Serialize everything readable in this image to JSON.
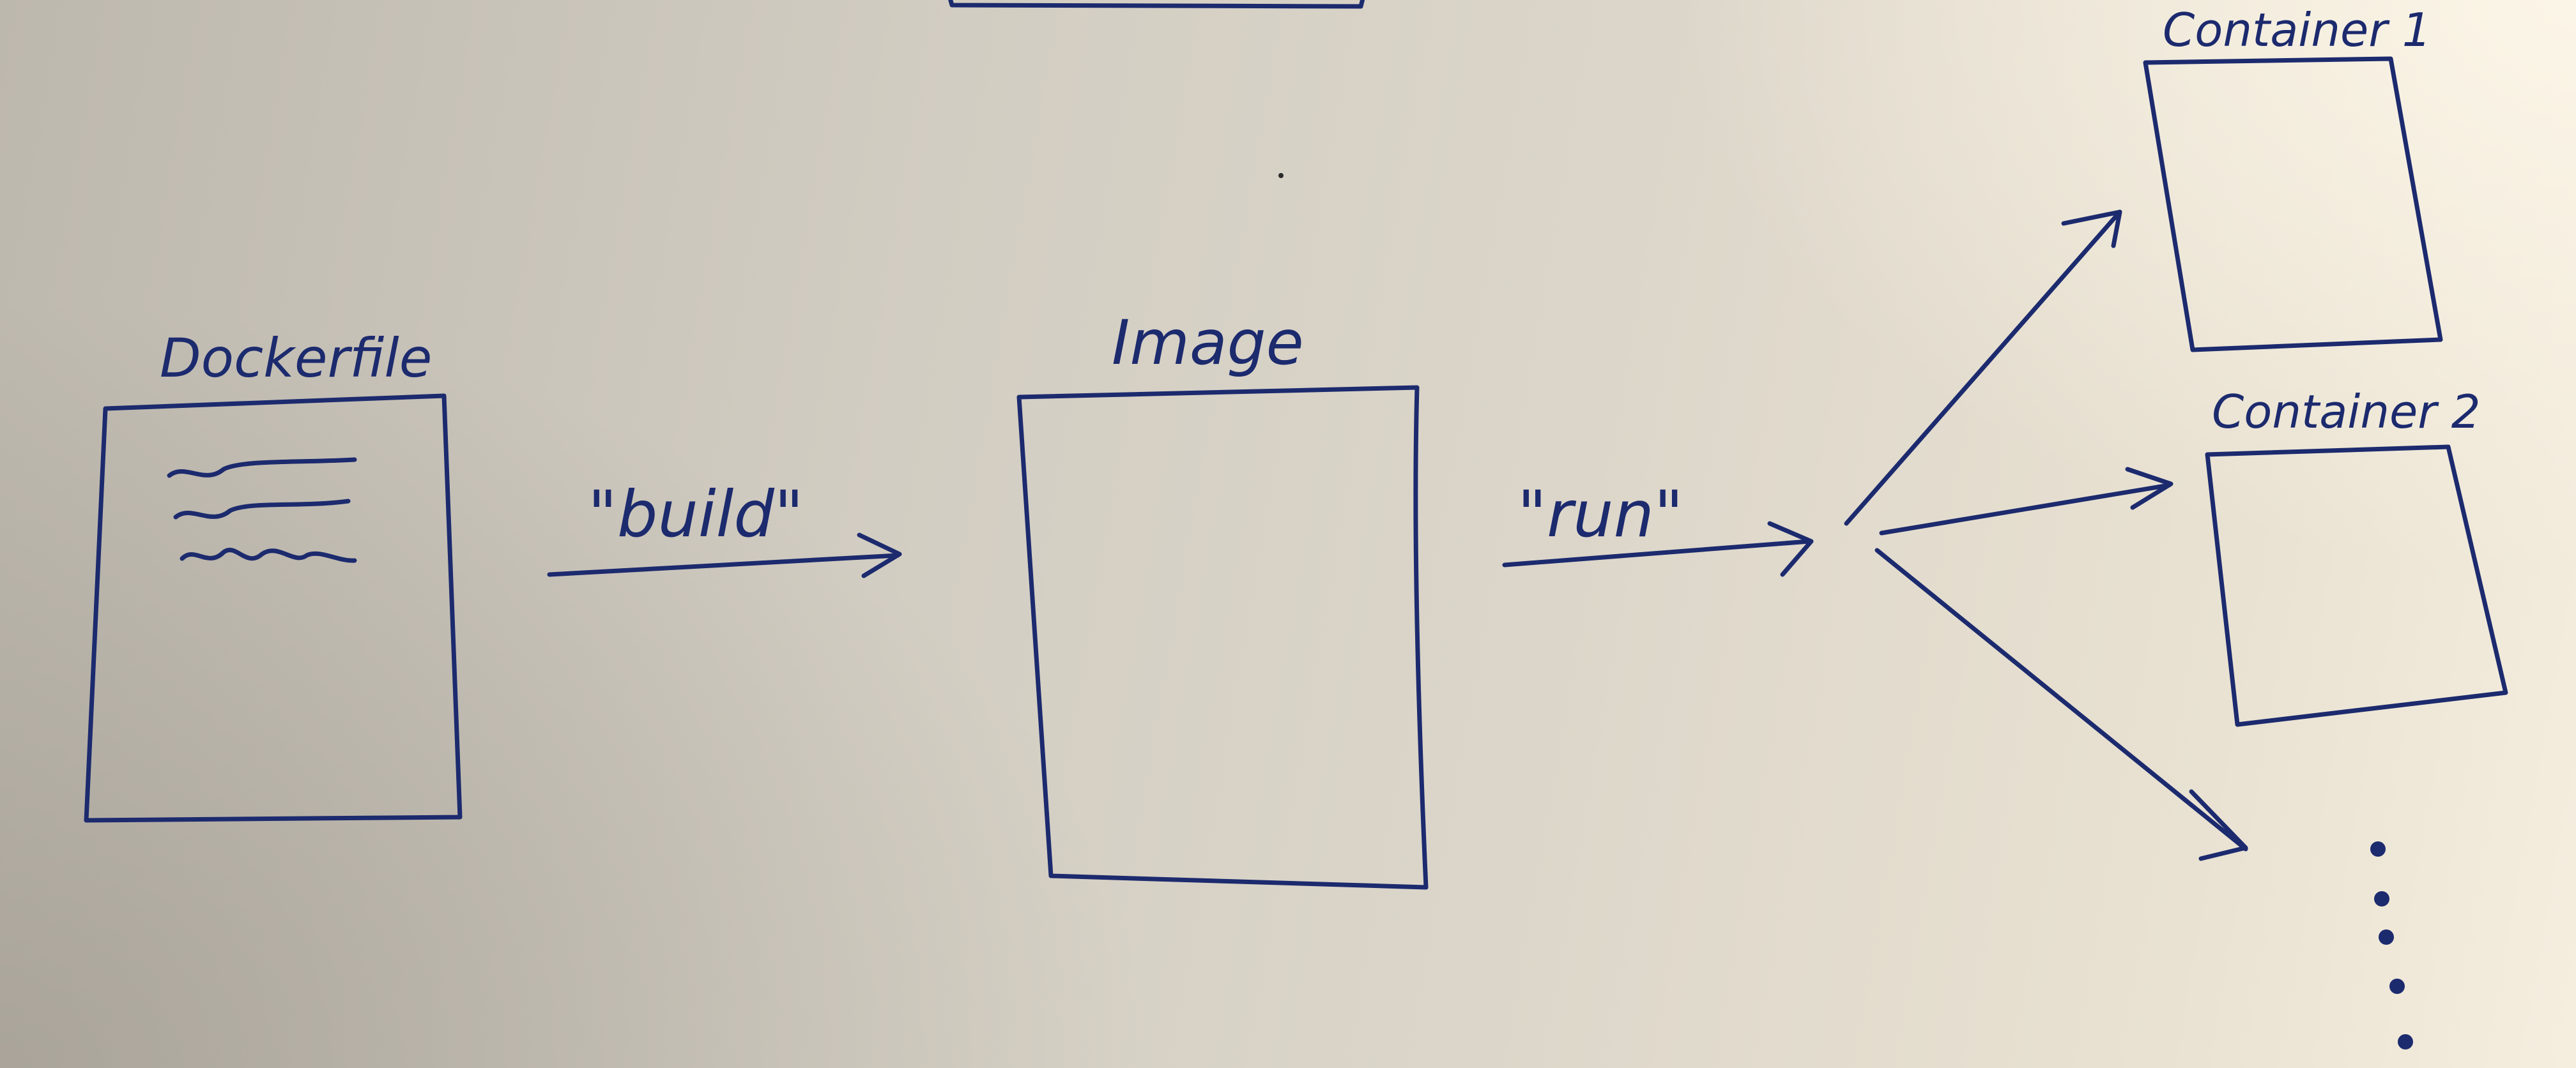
{
  "labels": {
    "dockerfile": "Dockerfile",
    "image": "Image",
    "build": "\"build\"",
    "run": "\"run\"",
    "container1": "Container 1",
    "container2": "Container 2",
    "ellipsis": "..."
  },
  "colors": {
    "ink": "#1c2a6e",
    "paper": "#d2cdc2"
  }
}
